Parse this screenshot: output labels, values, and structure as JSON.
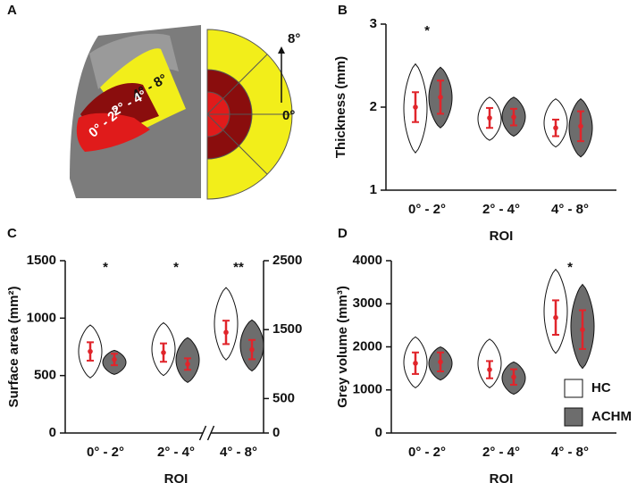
{
  "figure_a": {
    "panel_label": "A",
    "regions": [
      "4° - 8°",
      "2° - 4°",
      "0° - 2°"
    ],
    "scale": [
      "8°",
      "0°"
    ]
  },
  "chart_data": [
    {
      "type": "violin",
      "panel_label": "B",
      "y_label": "Thickness (mm)",
      "x_label": "ROI",
      "categories": [
        "0° - 2°",
        "2° - 4°",
        "4° - 8°"
      ],
      "ylim": [
        1,
        3
      ],
      "yticks": [
        1,
        2,
        3
      ],
      "series": [
        {
          "color": "#ffffff",
          "values": [
            2.0,
            1.87,
            1.75
          ],
          "errors": [
            0.18,
            0.12,
            0.1
          ],
          "min": [
            1.45,
            1.6,
            1.52
          ],
          "max": [
            2.52,
            2.12,
            2.1
          ]
        },
        {
          "color": "#6d6d6d",
          "values": [
            2.12,
            1.88,
            1.77
          ],
          "errors": [
            0.2,
            0.1,
            0.18
          ],
          "min": [
            1.75,
            1.65,
            1.4
          ],
          "max": [
            2.48,
            2.12,
            2.1
          ]
        }
      ],
      "annotations": [
        {
          "category": "0° - 2°",
          "text": "*"
        }
      ]
    },
    {
      "type": "violin",
      "panel_label": "C",
      "y_label": "Surface area (mm²)",
      "x_label": "ROI",
      "categories": [
        "0° - 2°",
        "2° - 4°",
        "4° - 8°"
      ],
      "ylim": [
        0,
        1500
      ],
      "yticks": [
        0,
        500,
        1000,
        1500
      ],
      "y2lim": [
        0,
        2500
      ],
      "y2ticks": [
        0,
        500,
        1500,
        2500
      ],
      "category_axis": [
        "y",
        "y",
        "y2"
      ],
      "axis_break": true,
      "series": [
        {
          "color": "#ffffff",
          "values": [
            710,
            700,
            1460
          ],
          "errors": [
            80,
            80,
            170
          ],
          "min": [
            480,
            500,
            1060
          ],
          "max": [
            940,
            960,
            2110
          ]
        },
        {
          "color": "#6d6d6d",
          "values": [
            640,
            600,
            1210
          ],
          "errors": [
            50,
            50,
            140
          ],
          "min": [
            510,
            440,
            900
          ],
          "max": [
            720,
            830,
            1640
          ]
        }
      ],
      "annotations": [
        {
          "category": "0° - 2°",
          "text": "*"
        },
        {
          "category": "2° - 4°",
          "text": "*"
        },
        {
          "category": "4° - 8°",
          "text": "**"
        }
      ]
    },
    {
      "type": "violin",
      "panel_label": "D",
      "y_label": "Grey volume (mm³)",
      "x_label": "ROI",
      "categories": [
        "0° - 2°",
        "2° - 4°",
        "4° - 8°"
      ],
      "ylim": [
        0,
        4000
      ],
      "yticks": [
        0,
        1000,
        2000,
        3000,
        4000
      ],
      "series": [
        {
          "name": "HC",
          "color": "#ffffff",
          "values": [
            1620,
            1470,
            2680
          ],
          "errors": [
            250,
            200,
            400
          ],
          "min": [
            1050,
            1050,
            1850
          ],
          "max": [
            2230,
            2180,
            3800
          ]
        },
        {
          "name": "ACHM",
          "color": "#6d6d6d",
          "values": [
            1650,
            1300,
            2400
          ],
          "errors": [
            220,
            180,
            450
          ],
          "min": [
            1230,
            900,
            1500
          ],
          "max": [
            2000,
            1650,
            3450
          ]
        }
      ],
      "annotations": [
        {
          "category": "4° - 8°",
          "text": "*"
        }
      ],
      "legend": "lower right"
    }
  ]
}
